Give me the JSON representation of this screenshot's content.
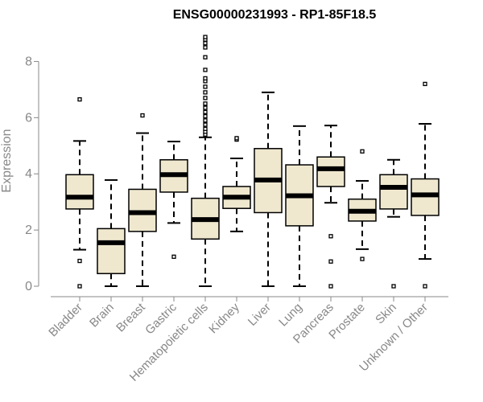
{
  "chart_data": {
    "type": "box",
    "title": "ENSG00000231993 - RP1-85F18.5",
    "ylabel": "Expression",
    "xlabel": "",
    "ylim": [
      0,
      8.9
    ],
    "yticks": [
      0,
      2,
      4,
      6,
      8
    ],
    "box_fill": "#efe8cf",
    "categories": [
      "Bladder",
      "Brain",
      "Breast",
      "Gastric",
      "Hematopoietic cells",
      "Kidney",
      "Liver",
      "Lung",
      "Pancreas",
      "Prostate",
      "Skin",
      "Unknown / Other"
    ],
    "boxes": [
      {
        "whisker_low": 1.3,
        "q1": 2.75,
        "median": 3.17,
        "q3": 3.97,
        "whisker_high": 5.17,
        "outliers": [
          0.0,
          0.9,
          6.65
        ]
      },
      {
        "whisker_low": 0.0,
        "q1": 0.45,
        "median": 1.55,
        "q3": 2.05,
        "whisker_high": 3.78,
        "outliers": []
      },
      {
        "whisker_low": 0.0,
        "q1": 1.95,
        "median": 2.62,
        "q3": 3.45,
        "whisker_high": 5.45,
        "outliers": [
          6.08
        ]
      },
      {
        "whisker_low": 2.25,
        "q1": 3.35,
        "median": 3.97,
        "q3": 4.5,
        "whisker_high": 5.15,
        "outliers": [
          1.05
        ]
      },
      {
        "whisker_low": 0.0,
        "q1": 1.68,
        "median": 2.37,
        "q3": 3.13,
        "whisker_high": 5.3,
        "outliers": [
          5.4,
          5.5,
          5.6,
          5.75,
          5.9,
          6.05,
          6.2,
          6.35,
          6.5,
          6.7,
          6.9,
          7.1,
          7.3,
          7.4,
          7.7,
          8.15,
          8.5,
          8.65,
          8.78,
          8.87
        ]
      },
      {
        "whisker_low": 1.95,
        "q1": 2.77,
        "median": 3.17,
        "q3": 3.55,
        "whisker_high": 4.55,
        "outliers": [
          5.22,
          5.27
        ]
      },
      {
        "whisker_low": 0.0,
        "q1": 2.62,
        "median": 3.78,
        "q3": 4.9,
        "whisker_high": 6.9,
        "outliers": []
      },
      {
        "whisker_low": 0.0,
        "q1": 2.15,
        "median": 3.22,
        "q3": 4.32,
        "whisker_high": 5.7,
        "outliers": []
      },
      {
        "whisker_low": 2.97,
        "q1": 3.55,
        "median": 4.18,
        "q3": 4.6,
        "whisker_high": 5.72,
        "outliers": [
          0.0,
          0.88,
          1.78
        ]
      },
      {
        "whisker_low": 1.32,
        "q1": 2.32,
        "median": 2.67,
        "q3": 3.1,
        "whisker_high": 3.75,
        "outliers": [
          0.97,
          4.8
        ]
      },
      {
        "whisker_low": 2.47,
        "q1": 2.75,
        "median": 3.52,
        "q3": 3.97,
        "whisker_high": 4.5,
        "outliers": [
          0.0
        ]
      },
      {
        "whisker_low": 0.97,
        "q1": 2.52,
        "median": 3.25,
        "q3": 3.82,
        "whisker_high": 5.78,
        "outliers": [
          0.0,
          7.2
        ]
      }
    ]
  }
}
